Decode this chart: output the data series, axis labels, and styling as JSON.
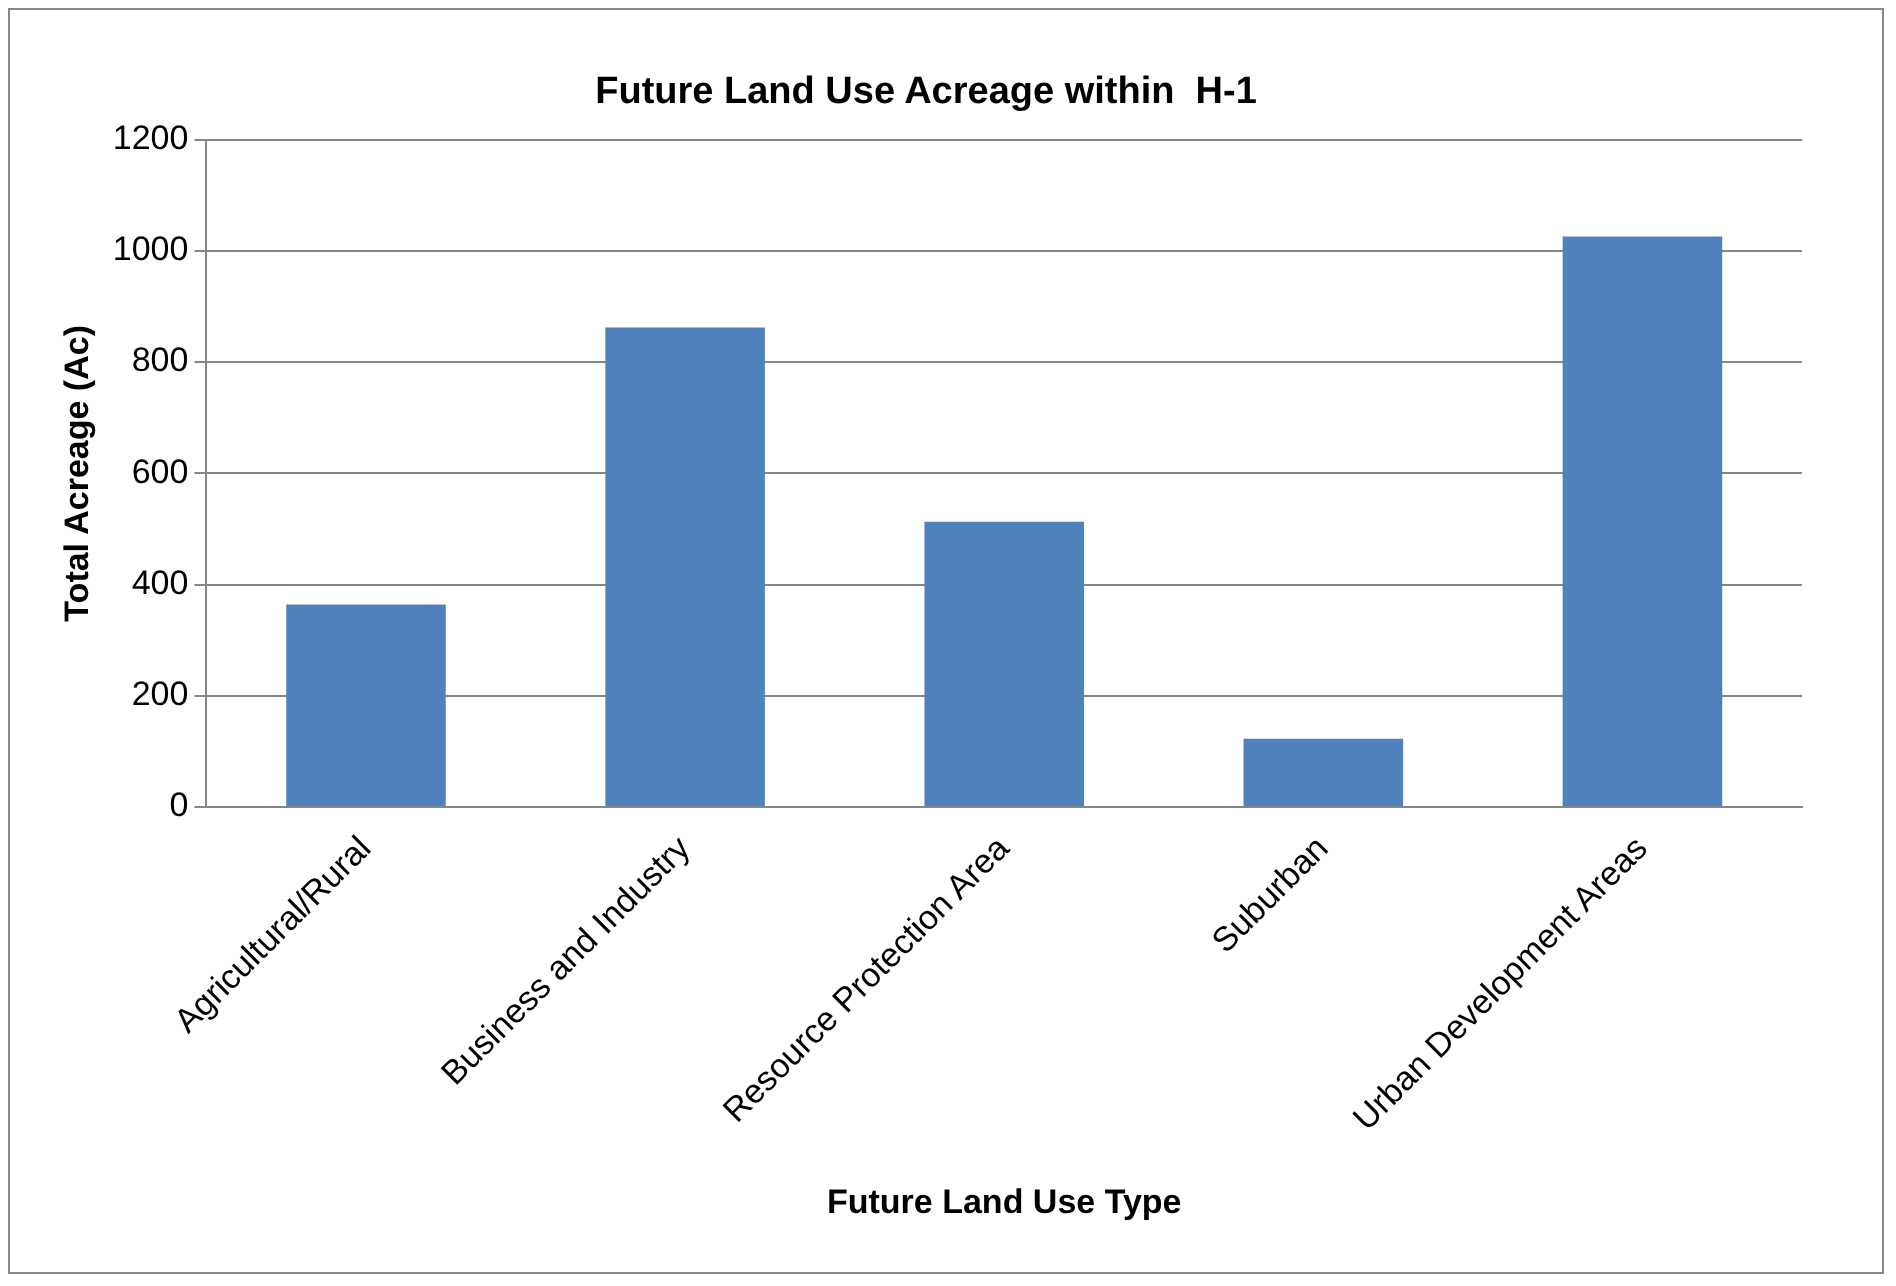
{
  "chart_data": {
    "type": "bar",
    "title": "Future Land Use Acreage within  H-1",
    "xlabel": "Future Land Use Type",
    "ylabel": "Total Acreage (Ac)",
    "categories": [
      "Agricultural/Rural",
      "Business and Industry",
      "Resource Protection Area",
      "Suburban",
      "Urban Development Areas"
    ],
    "values": [
      364,
      862,
      513,
      123,
      1026
    ],
    "color": "#4f81bd",
    "ylim": [
      0,
      1200
    ],
    "yticks": [
      0,
      200,
      400,
      600,
      800,
      1000,
      1200
    ],
    "grid": "y",
    "legend": false
  }
}
